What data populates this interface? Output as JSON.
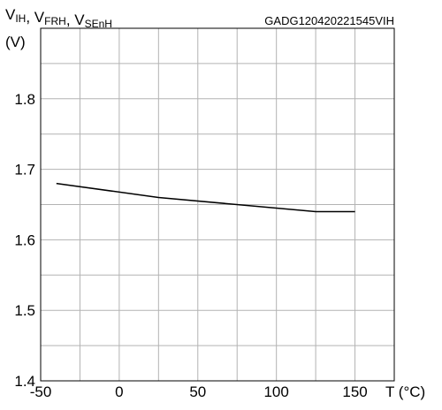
{
  "chart_data": {
    "type": "line",
    "title": "",
    "ylabel_parts": [
      {
        "main": "V",
        "sub": "IH"
      },
      {
        "main": "V",
        "sub": "FRH"
      },
      {
        "main": "V",
        "sub": "SEnH"
      }
    ],
    "ylabel_separator": ", ",
    "yunit": "(V)",
    "xlabel": "T (°C)",
    "doc_id": "GADG120420221545VIH",
    "xlim": [
      -50,
      175
    ],
    "ylim": [
      1.4,
      1.9
    ],
    "x_ticks": [
      -50,
      0,
      50,
      100,
      150
    ],
    "x_tick_labels": [
      "-50",
      "0",
      "50",
      "100",
      "150"
    ],
    "y_ticks": [
      1.4,
      1.5,
      1.6,
      1.7,
      1.8
    ],
    "y_tick_labels": [
      "1.4",
      "1.5",
      "1.6",
      "1.7",
      "1.8"
    ],
    "x_grid_step": 25,
    "y_grid_step": 0.05,
    "grid": true,
    "series": [
      {
        "x": [
          -40,
          25,
          125,
          150
        ],
        "y": [
          1.68,
          1.66,
          1.64,
          1.64
        ]
      }
    ],
    "line_color": "#000000",
    "grid_color": "#b3b3b3"
  }
}
